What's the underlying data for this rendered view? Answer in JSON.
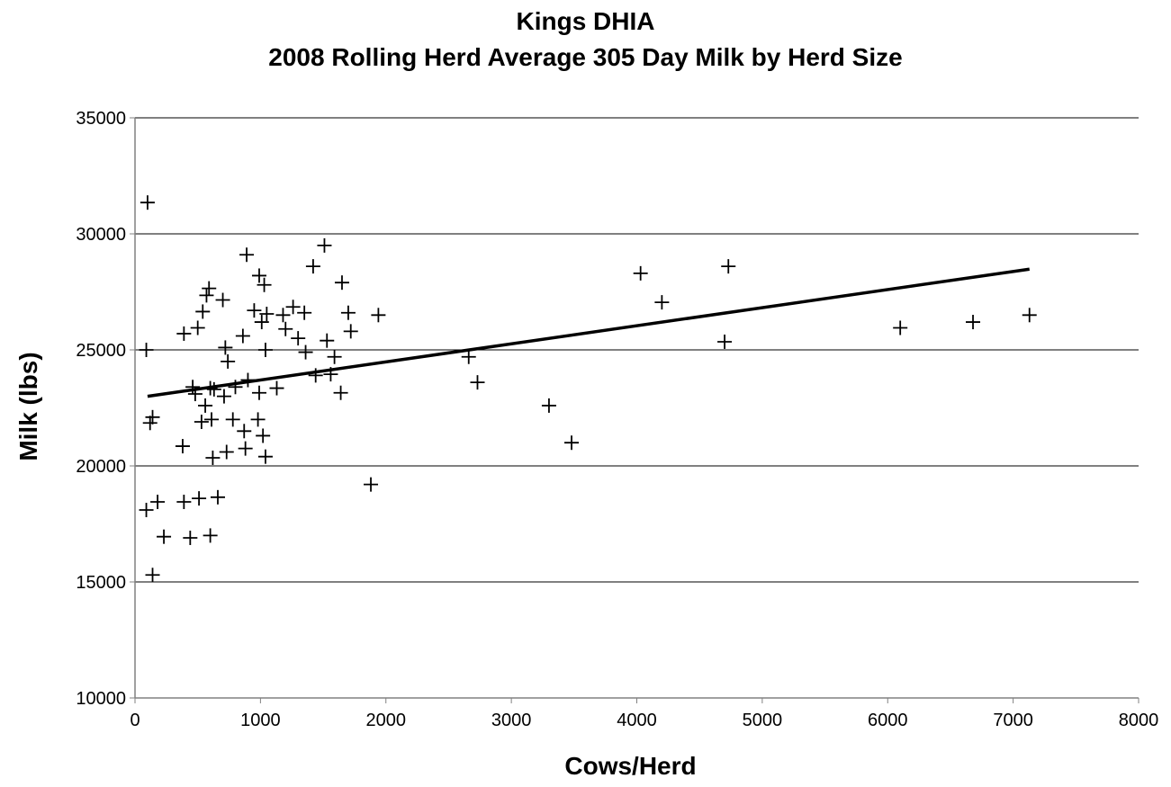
{
  "chart_data": {
    "type": "scatter",
    "title_lines": [
      "Kings DHIA",
      "2008 Rolling Herd Average 305 Day Milk by Herd Size"
    ],
    "xlabel": "Cows/Herd",
    "ylabel": "Milk (lbs)",
    "xlim": [
      0,
      8000
    ],
    "ylim": [
      10000,
      35000
    ],
    "x_ticks": [
      0,
      1000,
      2000,
      3000,
      4000,
      5000,
      6000,
      7000,
      8000
    ],
    "y_ticks": [
      10000,
      15000,
      20000,
      25000,
      30000,
      35000
    ],
    "grid": "horizontal",
    "marker": "plus",
    "colors": {
      "marker": "#000000",
      "trendline": "#000000",
      "grid": "#000000",
      "axis": "#808080"
    },
    "trendline": {
      "type": "linear",
      "x": [
        100,
        7130
      ],
      "y": [
        23000,
        28480
      ]
    },
    "points": [
      [
        100,
        31350
      ],
      [
        90,
        25000
      ],
      [
        120,
        21850
      ],
      [
        140,
        22100
      ],
      [
        90,
        18100
      ],
      [
        180,
        18450
      ],
      [
        140,
        15300
      ],
      [
        230,
        16950
      ],
      [
        380,
        20850
      ],
      [
        390,
        25700
      ],
      [
        390,
        18450
      ],
      [
        440,
        16900
      ],
      [
        460,
        23400
      ],
      [
        480,
        23100
      ],
      [
        500,
        25950
      ],
      [
        510,
        18600
      ],
      [
        530,
        21900
      ],
      [
        540,
        26650
      ],
      [
        560,
        22600
      ],
      [
        570,
        27350
      ],
      [
        590,
        27650
      ],
      [
        600,
        23350
      ],
      [
        600,
        17000
      ],
      [
        610,
        22000
      ],
      [
        620,
        20350
      ],
      [
        630,
        23300
      ],
      [
        660,
        18650
      ],
      [
        700,
        27150
      ],
      [
        710,
        23000
      ],
      [
        720,
        25100
      ],
      [
        730,
        20600
      ],
      [
        740,
        24500
      ],
      [
        780,
        22000
      ],
      [
        800,
        23400
      ],
      [
        860,
        25600
      ],
      [
        870,
        21500
      ],
      [
        880,
        20750
      ],
      [
        890,
        29100
      ],
      [
        900,
        23700
      ],
      [
        950,
        26700
      ],
      [
        980,
        22000
      ],
      [
        990,
        23150
      ],
      [
        990,
        28200
      ],
      [
        1010,
        26200
      ],
      [
        1020,
        21300
      ],
      [
        1030,
        27800
      ],
      [
        1040,
        25000
      ],
      [
        1040,
        20400
      ],
      [
        1050,
        26550
      ],
      [
        1130,
        23350
      ],
      [
        1180,
        26500
      ],
      [
        1200,
        25900
      ],
      [
        1260,
        26850
      ],
      [
        1300,
        25500
      ],
      [
        1350,
        26600
      ],
      [
        1360,
        24900
      ],
      [
        1420,
        28600
      ],
      [
        1440,
        23900
      ],
      [
        1510,
        29500
      ],
      [
        1530,
        25400
      ],
      [
        1560,
        23950
      ],
      [
        1590,
        24700
      ],
      [
        1640,
        23150
      ],
      [
        1650,
        27900
      ],
      [
        1700,
        26600
      ],
      [
        1720,
        25800
      ],
      [
        1880,
        19200
      ],
      [
        1940,
        26500
      ],
      [
        2660,
        24700
      ],
      [
        2730,
        23600
      ],
      [
        3300,
        22600
      ],
      [
        3480,
        21000
      ],
      [
        4030,
        28300
      ],
      [
        4200,
        27050
      ],
      [
        4700,
        25350
      ],
      [
        4730,
        28600
      ],
      [
        6100,
        25950
      ],
      [
        6680,
        26200
      ],
      [
        7130,
        26500
      ]
    ]
  }
}
